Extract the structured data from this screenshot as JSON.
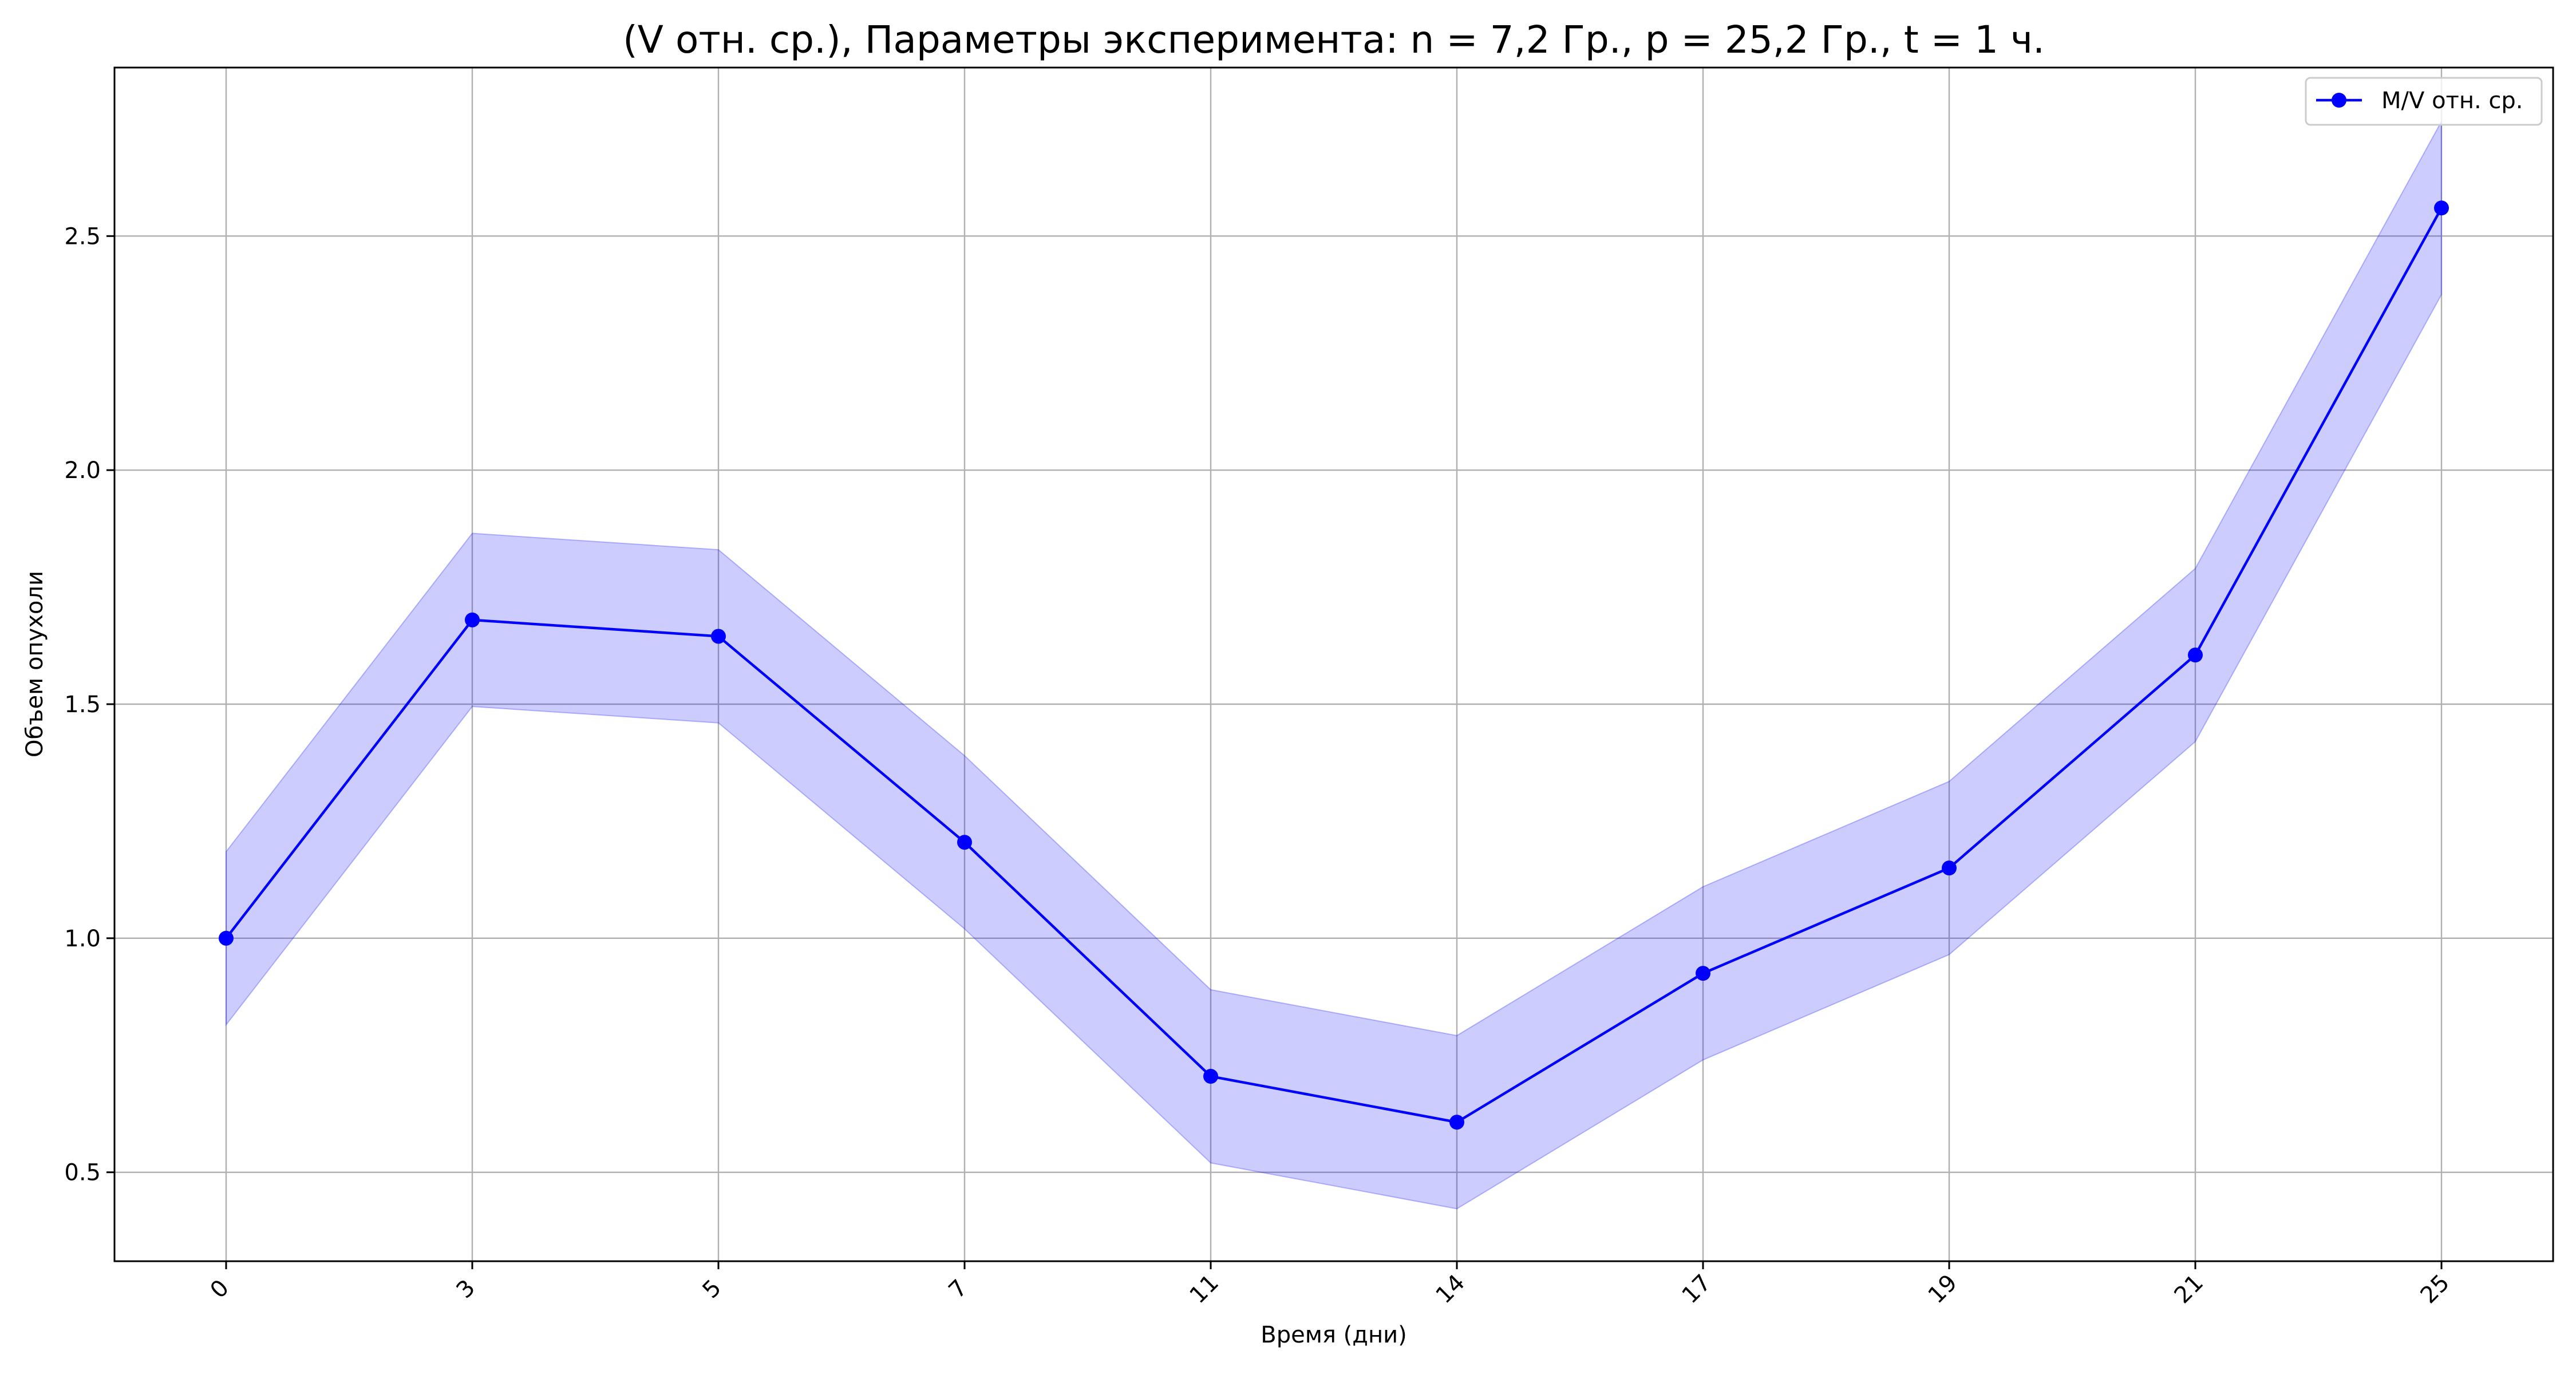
{
  "chart_data": {
    "type": "line",
    "title": "(V отн. ср.), Параметры эксперимента: n = 7,2 Гр., p = 25,2 Гр., t = 1 ч.",
    "xlabel": "Время (дни)",
    "ylabel": "Объем опухоли",
    "x_categories": [
      "0",
      "3",
      "5",
      "7",
      "11",
      "14",
      "17",
      "19",
      "21",
      "25"
    ],
    "ylim": [
      0.31,
      2.86
    ],
    "yticks": [
      0.5,
      1.0,
      1.5,
      2.0,
      2.5
    ],
    "ytick_labels": [
      "0.5",
      "1.0",
      "1.5",
      "2.0",
      "2.5"
    ],
    "grid": true,
    "legend_position": "top-right",
    "series": [
      {
        "name": "M/V отн. ср.",
        "color": "#0000ff",
        "marker": "circle",
        "values": [
          1.0,
          1.68,
          1.645,
          1.205,
          0.705,
          0.607,
          0.925,
          1.15,
          1.605,
          2.56
        ],
        "band_lower": [
          0.815,
          1.495,
          1.46,
          1.02,
          0.52,
          0.422,
          0.74,
          0.965,
          1.42,
          2.375
        ],
        "band_upper": [
          1.185,
          1.865,
          1.83,
          1.39,
          0.89,
          0.792,
          1.11,
          1.335,
          1.79,
          2.745
        ],
        "band_color": "#0000ff",
        "band_opacity": 0.2
      }
    ]
  }
}
